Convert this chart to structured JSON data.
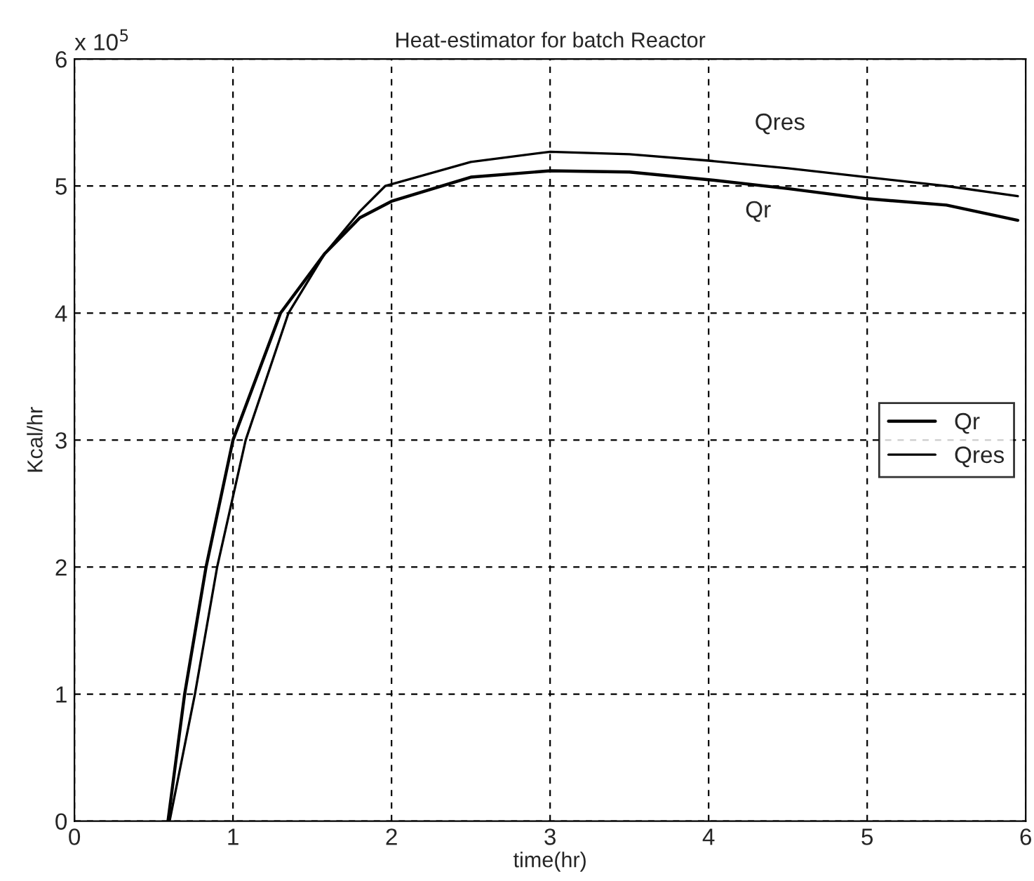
{
  "chart_data": {
    "type": "line",
    "title": "Heat-estimator for batch Reactor",
    "xlabel": "time(hr)",
    "ylabel": "Kcal/hr",
    "annotations": [
      "x 10$^{5}$",
      "Qres",
      "Qr"
    ],
    "series": [
      {
        "name": "Qr",
        "color": "#000000",
        "x": [
          0.59,
          0.695,
          0.83,
          1.0,
          1.3,
          1.58,
          1.8,
          2.0,
          2.5,
          3.0,
          3.5,
          4.0,
          4.5,
          5.0,
          5.5,
          5.95
        ],
        "values": [
          0,
          1.0,
          2.0,
          3.0,
          4.0,
          4.47,
          4.75,
          4.88,
          5.07,
          5.12,
          5.11,
          5.05,
          4.98,
          4.9,
          4.85,
          4.73
        ]
      },
      {
        "name": "Qres",
        "color": "#000000",
        "x": [
          0.6,
          0.76,
          0.9,
          1.08,
          1.35,
          1.58,
          1.8,
          1.96,
          2.5,
          3.0,
          3.5,
          4.0,
          4.5,
          5.0,
          5.5,
          5.95
        ],
        "values": [
          0,
          1.0,
          2.0,
          3.0,
          4.0,
          4.47,
          4.8,
          5.0,
          5.19,
          5.27,
          5.25,
          5.2,
          5.14,
          5.07,
          5.0,
          4.92
        ]
      }
    ],
    "xlim": [
      0,
      6
    ],
    "xticks": [
      0,
      1,
      2,
      3,
      4,
      5,
      6
    ],
    "ylim": [
      0,
      6
    ],
    "yticks": [
      0,
      1,
      2,
      3,
      4,
      5,
      6
    ],
    "grid": true,
    "legend": "right",
    "line_style": "solid"
  }
}
